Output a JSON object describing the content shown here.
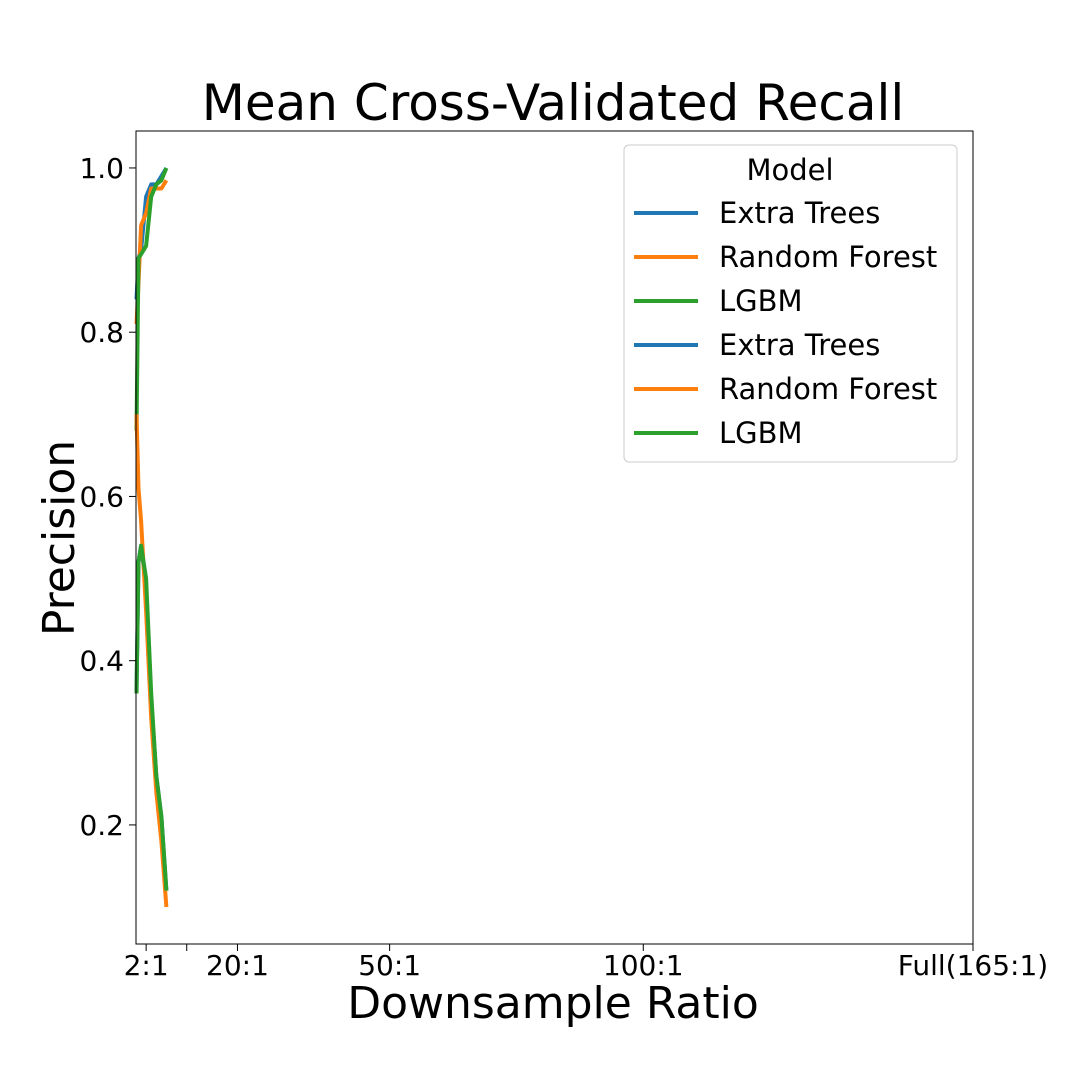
{
  "chart_data": {
    "type": "line",
    "title": "Mean Cross-Validated Recall",
    "xlabel": "Downsample Ratio",
    "ylabel": "Precision",
    "xlim": [
      0,
      165
    ],
    "ylim": [
      0.055,
      1.045
    ],
    "yticks": [
      0.2,
      0.4,
      0.6,
      0.8,
      1.0
    ],
    "ytick_labels": [
      "0.2",
      "0.4",
      "0.6",
      "0.8",
      "1.0"
    ],
    "xticks": [
      {
        "value": 2,
        "label": "2:1"
      },
      {
        "value": 10,
        "label": ""
      },
      {
        "value": 20,
        "label": "20:1"
      },
      {
        "value": 50,
        "label": "50:1"
      },
      {
        "value": 100,
        "label": "100:1"
      },
      {
        "value": 165,
        "label": "Full(165:1)"
      }
    ],
    "grid": false,
    "legend": {
      "title": "Model",
      "position": "top-right"
    },
    "series": [
      {
        "name": "Extra Trees",
        "color": "#1f77b4",
        "x": [
          0.1,
          0.5,
          1,
          2,
          3,
          4,
          5,
          6
        ],
        "y": [
          0.84,
          0.89,
          0.9,
          0.965,
          0.98,
          0.98,
          0.99,
          1.0
        ]
      },
      {
        "name": "Random Forest",
        "color": "#ff7f0e",
        "x": [
          0.1,
          0.5,
          1,
          2,
          3,
          4,
          5,
          6
        ],
        "y": [
          0.81,
          0.86,
          0.93,
          0.945,
          0.975,
          0.975,
          0.975,
          0.985
        ]
      },
      {
        "name": "LGBM",
        "color": "#2ca02c",
        "x": [
          0.1,
          0.5,
          1,
          2,
          3,
          4,
          5,
          6
        ],
        "y": [
          0.68,
          0.89,
          0.895,
          0.905,
          0.965,
          0.98,
          0.985,
          1.0
        ]
      },
      {
        "name": "Extra Trees",
        "color": "#1f77b4",
        "x": [
          0.1,
          0.5,
          1,
          2,
          3,
          4,
          5,
          6
        ],
        "y": [
          0.36,
          0.52,
          0.54,
          0.49,
          0.35,
          0.26,
          0.21,
          0.12
        ]
      },
      {
        "name": "Random Forest",
        "color": "#ff7f0e",
        "x": [
          0.1,
          0.5,
          1,
          2,
          3,
          4,
          5,
          6
        ],
        "y": [
          0.7,
          0.61,
          0.57,
          0.46,
          0.33,
          0.24,
          0.18,
          0.1
        ]
      },
      {
        "name": "LGBM",
        "color": "#2ca02c",
        "x": [
          0.1,
          0.5,
          1,
          2,
          3,
          4,
          5,
          6
        ],
        "y": [
          0.36,
          0.52,
          0.54,
          0.5,
          0.36,
          0.26,
          0.21,
          0.12
        ]
      }
    ]
  }
}
